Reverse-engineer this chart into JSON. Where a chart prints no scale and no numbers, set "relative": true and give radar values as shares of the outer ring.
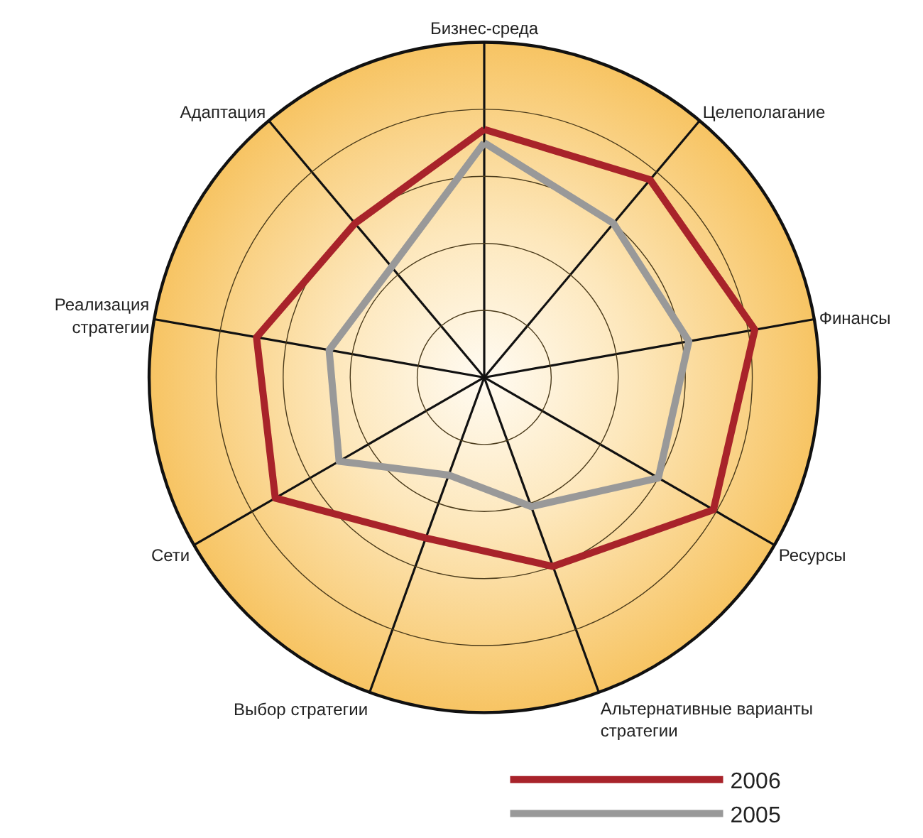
{
  "chart_data": {
    "type": "radar",
    "relative": true,
    "categories": [
      "Бизнес-среда",
      "Целеполагание",
      "Финансы",
      "Ресурсы",
      "Альтернативные варианты стратегии",
      "Выбор стратегии",
      "Сети",
      "Реализация стратегии",
      "Адаптация"
    ],
    "series": [
      {
        "name": "2006",
        "color": "#a8232a",
        "values": [
          0.74,
          0.77,
          0.82,
          0.79,
          0.6,
          0.51,
          0.72,
          0.69,
          0.6
        ]
      },
      {
        "name": "2005",
        "color": "#999999",
        "values": [
          0.7,
          0.6,
          0.62,
          0.6,
          0.41,
          0.31,
          0.5,
          0.47,
          0.43
        ]
      }
    ],
    "grid": true,
    "legend": "bottom right",
    "marker": "none",
    "line_style": "solid"
  }
}
